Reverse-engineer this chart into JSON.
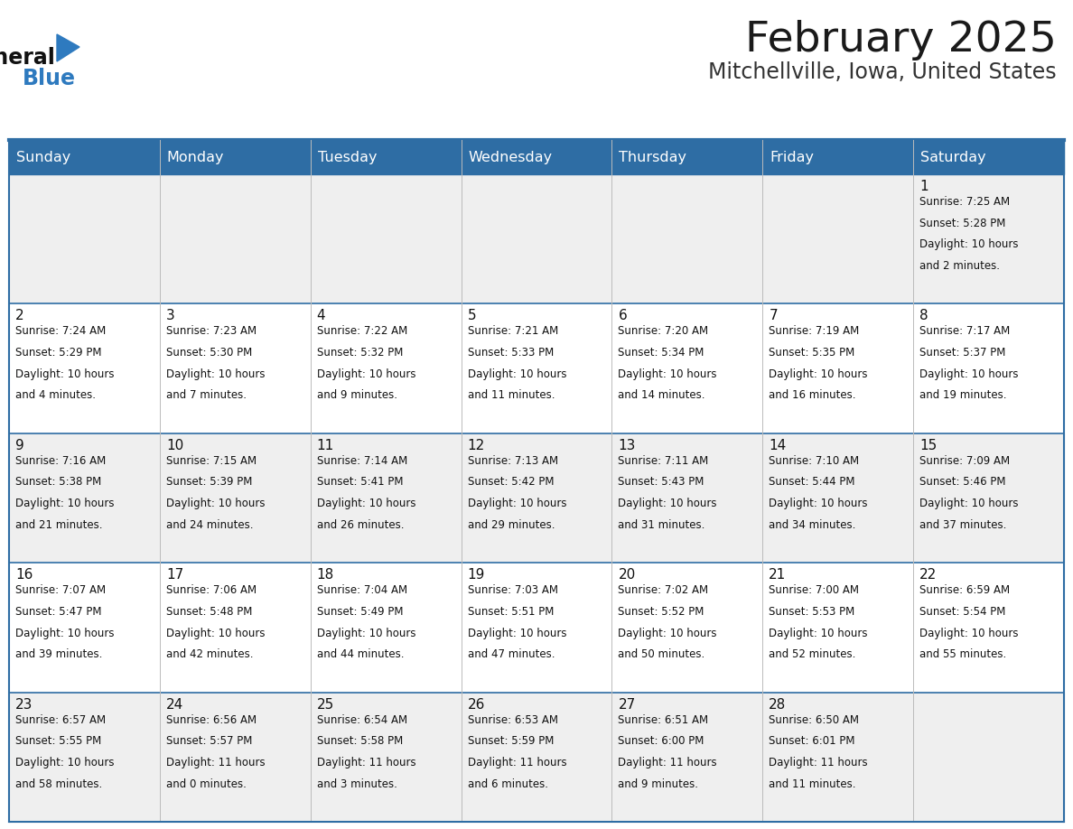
{
  "title": "February 2025",
  "subtitle": "Mitchellville, Iowa, United States",
  "header_color": "#2E6DA4",
  "header_text_color": "#FFFFFF",
  "cell_bg_light": "#EFEFEF",
  "cell_bg_white": "#FFFFFF",
  "day_names": [
    "Sunday",
    "Monday",
    "Tuesday",
    "Wednesday",
    "Thursday",
    "Friday",
    "Saturday"
  ],
  "days": [
    {
      "day": 1,
      "col": 6,
      "row": 0,
      "sunrise": "7:25 AM",
      "sunset": "5:28 PM",
      "daylight": "10 hours and 2 minutes."
    },
    {
      "day": 2,
      "col": 0,
      "row": 1,
      "sunrise": "7:24 AM",
      "sunset": "5:29 PM",
      "daylight": "10 hours and 4 minutes."
    },
    {
      "day": 3,
      "col": 1,
      "row": 1,
      "sunrise": "7:23 AM",
      "sunset": "5:30 PM",
      "daylight": "10 hours and 7 minutes."
    },
    {
      "day": 4,
      "col": 2,
      "row": 1,
      "sunrise": "7:22 AM",
      "sunset": "5:32 PM",
      "daylight": "10 hours and 9 minutes."
    },
    {
      "day": 5,
      "col": 3,
      "row": 1,
      "sunrise": "7:21 AM",
      "sunset": "5:33 PM",
      "daylight": "10 hours and 11 minutes."
    },
    {
      "day": 6,
      "col": 4,
      "row": 1,
      "sunrise": "7:20 AM",
      "sunset": "5:34 PM",
      "daylight": "10 hours and 14 minutes."
    },
    {
      "day": 7,
      "col": 5,
      "row": 1,
      "sunrise": "7:19 AM",
      "sunset": "5:35 PM",
      "daylight": "10 hours and 16 minutes."
    },
    {
      "day": 8,
      "col": 6,
      "row": 1,
      "sunrise": "7:17 AM",
      "sunset": "5:37 PM",
      "daylight": "10 hours and 19 minutes."
    },
    {
      "day": 9,
      "col": 0,
      "row": 2,
      "sunrise": "7:16 AM",
      "sunset": "5:38 PM",
      "daylight": "10 hours and 21 minutes."
    },
    {
      "day": 10,
      "col": 1,
      "row": 2,
      "sunrise": "7:15 AM",
      "sunset": "5:39 PM",
      "daylight": "10 hours and 24 minutes."
    },
    {
      "day": 11,
      "col": 2,
      "row": 2,
      "sunrise": "7:14 AM",
      "sunset": "5:41 PM",
      "daylight": "10 hours and 26 minutes."
    },
    {
      "day": 12,
      "col": 3,
      "row": 2,
      "sunrise": "7:13 AM",
      "sunset": "5:42 PM",
      "daylight": "10 hours and 29 minutes."
    },
    {
      "day": 13,
      "col": 4,
      "row": 2,
      "sunrise": "7:11 AM",
      "sunset": "5:43 PM",
      "daylight": "10 hours and 31 minutes."
    },
    {
      "day": 14,
      "col": 5,
      "row": 2,
      "sunrise": "7:10 AM",
      "sunset": "5:44 PM",
      "daylight": "10 hours and 34 minutes."
    },
    {
      "day": 15,
      "col": 6,
      "row": 2,
      "sunrise": "7:09 AM",
      "sunset": "5:46 PM",
      "daylight": "10 hours and 37 minutes."
    },
    {
      "day": 16,
      "col": 0,
      "row": 3,
      "sunrise": "7:07 AM",
      "sunset": "5:47 PM",
      "daylight": "10 hours and 39 minutes."
    },
    {
      "day": 17,
      "col": 1,
      "row": 3,
      "sunrise": "7:06 AM",
      "sunset": "5:48 PM",
      "daylight": "10 hours and 42 minutes."
    },
    {
      "day": 18,
      "col": 2,
      "row": 3,
      "sunrise": "7:04 AM",
      "sunset": "5:49 PM",
      "daylight": "10 hours and 44 minutes."
    },
    {
      "day": 19,
      "col": 3,
      "row": 3,
      "sunrise": "7:03 AM",
      "sunset": "5:51 PM",
      "daylight": "10 hours and 47 minutes."
    },
    {
      "day": 20,
      "col": 4,
      "row": 3,
      "sunrise": "7:02 AM",
      "sunset": "5:52 PM",
      "daylight": "10 hours and 50 minutes."
    },
    {
      "day": 21,
      "col": 5,
      "row": 3,
      "sunrise": "7:00 AM",
      "sunset": "5:53 PM",
      "daylight": "10 hours and 52 minutes."
    },
    {
      "day": 22,
      "col": 6,
      "row": 3,
      "sunrise": "6:59 AM",
      "sunset": "5:54 PM",
      "daylight": "10 hours and 55 minutes."
    },
    {
      "day": 23,
      "col": 0,
      "row": 4,
      "sunrise": "6:57 AM",
      "sunset": "5:55 PM",
      "daylight": "10 hours and 58 minutes."
    },
    {
      "day": 24,
      "col": 1,
      "row": 4,
      "sunrise": "6:56 AM",
      "sunset": "5:57 PM",
      "daylight": "11 hours and 0 minutes."
    },
    {
      "day": 25,
      "col": 2,
      "row": 4,
      "sunrise": "6:54 AM",
      "sunset": "5:58 PM",
      "daylight": "11 hours and 3 minutes."
    },
    {
      "day": 26,
      "col": 3,
      "row": 4,
      "sunrise": "6:53 AM",
      "sunset": "5:59 PM",
      "daylight": "11 hours and 6 minutes."
    },
    {
      "day": 27,
      "col": 4,
      "row": 4,
      "sunrise": "6:51 AM",
      "sunset": "6:00 PM",
      "daylight": "11 hours and 9 minutes."
    },
    {
      "day": 28,
      "col": 5,
      "row": 4,
      "sunrise": "6:50 AM",
      "sunset": "6:01 PM",
      "daylight": "11 hours and 11 minutes."
    }
  ],
  "num_rows": 5,
  "num_cols": 7
}
